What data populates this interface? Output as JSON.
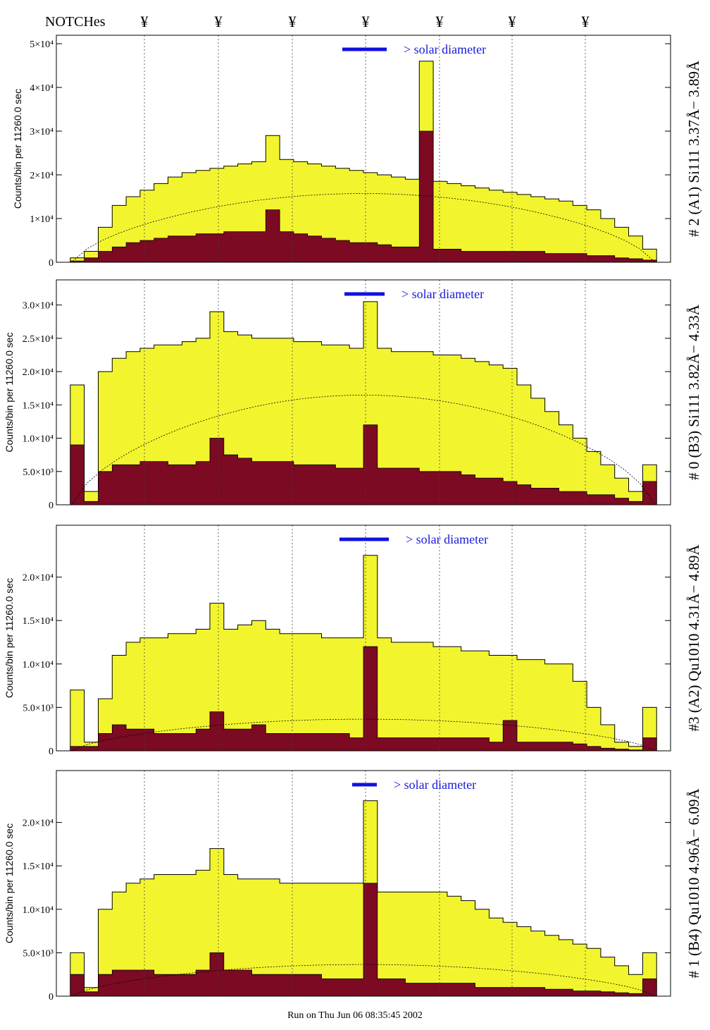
{
  "header": {
    "notches_label": "NOTCHes",
    "notch_symbol": "¥",
    "notch_count": 7
  },
  "footer": {
    "run_text": "Run on Thu Jun 06 08:35:45 2002"
  },
  "colors": {
    "fill_total": "#f2f52e",
    "fill_line": "#7b0a22",
    "bar": "#1010e0",
    "label_blue": "#1a1adc"
  },
  "chart_data": [
    {
      "type": "area",
      "title": "",
      "ylabel": "Counts/bin per  11260.0 sec",
      "right_label": "# 2 (A1) Si111  3.37Å− 3.89Å",
      "solar_label": "> solar diameter",
      "yticks": [
        "0",
        "1×10⁴",
        "2×10⁴",
        "3×10⁴",
        "4×10⁴",
        "5×10⁴"
      ],
      "ylim": [
        0,
        50000
      ],
      "series": [
        {
          "values": [
            0,
            1000,
            2500,
            8000,
            13000,
            15000,
            16500,
            18000,
            19500,
            20500,
            21000,
            21500,
            22000,
            22500,
            23000,
            29000,
            23500,
            23000,
            22500,
            22000,
            21500,
            21000,
            20500,
            20000,
            19500,
            19000,
            46000,
            18500,
            18000,
            17500,
            17000,
            16500,
            16000,
            15500,
            15000,
            14500,
            14000,
            13000,
            12000,
            10000,
            8000,
            6000,
            3000,
            0
          ]
        },
        {
          "values": [
            0,
            300,
            1000,
            2500,
            3500,
            4500,
            5000,
            5500,
            6000,
            6000,
            6500,
            6500,
            7000,
            7000,
            7000,
            12000,
            7000,
            6500,
            6000,
            5500,
            5000,
            4500,
            4500,
            4000,
            3500,
            3500,
            30000,
            3000,
            3000,
            2500,
            2500,
            2500,
            2500,
            2500,
            2500,
            2000,
            2000,
            2000,
            1500,
            1500,
            1000,
            800,
            500,
            0
          ]
        }
      ]
    },
    {
      "type": "area",
      "title": "",
      "ylabel": "Counts/bin per  11260.0 sec",
      "right_label": "# 0 (B3) Si111  3.82Å− 4.33Å",
      "solar_label": "> solar diameter",
      "yticks": [
        "0",
        "5.0×10³",
        "1.0×10⁴",
        "1.5×10⁴",
        "2.0×10⁴",
        "2.5×10⁴",
        "3.0×10⁴"
      ],
      "ylim": [
        0,
        32500
      ],
      "series": [
        {
          "values": [
            0,
            18000,
            2000,
            20000,
            22000,
            23000,
            23500,
            24000,
            24000,
            24500,
            25000,
            29000,
            26000,
            25500,
            25000,
            25000,
            25000,
            24500,
            24500,
            24000,
            24000,
            23500,
            30500,
            23500,
            23000,
            23000,
            23000,
            22500,
            22500,
            22000,
            21500,
            21000,
            20500,
            18000,
            16000,
            14000,
            12000,
            10000,
            8000,
            6000,
            4000,
            2000,
            6000,
            0
          ]
        },
        {
          "values": [
            0,
            9000,
            500,
            5000,
            6000,
            6000,
            6500,
            6500,
            6000,
            6000,
            6500,
            10000,
            7500,
            7000,
            6500,
            6500,
            6500,
            6000,
            6000,
            6000,
            5500,
            5500,
            12000,
            5500,
            5500,
            5500,
            5000,
            5000,
            5000,
            4500,
            4000,
            4000,
            3500,
            3000,
            2500,
            2500,
            2000,
            2000,
            1500,
            1500,
            1000,
            500,
            3500,
            0
          ]
        }
      ]
    },
    {
      "type": "area",
      "title": "",
      "ylabel": "Counts/bin per  11260.0 sec",
      "right_label": "#3 (A2) Qu1010  4.31Å− 4.89Å",
      "solar_label": "> solar diameter",
      "yticks": [
        "0",
        "5.0×10³",
        "1.0×10⁴",
        "1.5×10⁴",
        "2.0×10⁴"
      ],
      "ylim": [
        0,
        25000
      ],
      "series": [
        {
          "values": [
            0,
            7000,
            1000,
            6000,
            11000,
            12500,
            13000,
            13000,
            13500,
            13500,
            14000,
            17000,
            14000,
            14500,
            15000,
            14000,
            13500,
            13500,
            13500,
            13000,
            13000,
            13000,
            22500,
            13000,
            12500,
            12500,
            12500,
            12000,
            12000,
            11500,
            11500,
            11000,
            11000,
            10500,
            10500,
            10000,
            10000,
            8000,
            5000,
            3000,
            1000,
            500,
            5000,
            0
          ]
        },
        {
          "values": [
            0,
            500,
            500,
            2000,
            3000,
            2500,
            2500,
            2000,
            2000,
            2000,
            2500,
            4500,
            2500,
            2500,
            3000,
            2000,
            2000,
            2000,
            2000,
            2000,
            2000,
            1500,
            12000,
            1500,
            1500,
            1500,
            1500,
            1500,
            1500,
            1500,
            1500,
            1000,
            3500,
            1000,
            1000,
            1000,
            1000,
            800,
            500,
            300,
            200,
            100,
            1500,
            0
          ]
        }
      ]
    },
    {
      "type": "area",
      "title": "",
      "ylabel": "Counts/bin per  11260.0 sec",
      "right_label": "# 1 (B4) Qu1010 4.96Å− 6.09Å",
      "solar_label": "> solar diameter",
      "yticks": [
        "0",
        "5.0×10³",
        "1.0×10⁴",
        "1.5×10⁴",
        "2.0×10⁴"
      ],
      "ylim": [
        0,
        25000
      ],
      "series": [
        {
          "values": [
            0,
            5000,
            1000,
            10000,
            12000,
            13000,
            13500,
            14000,
            14000,
            14000,
            14500,
            17000,
            14000,
            13500,
            13500,
            13500,
            13000,
            13000,
            13000,
            13000,
            13000,
            13000,
            22500,
            12000,
            12000,
            12000,
            12000,
            12000,
            11500,
            11000,
            10000,
            9000,
            8500,
            8000,
            7500,
            7000,
            6500,
            6000,
            5500,
            4500,
            3500,
            2500,
            5000,
            0
          ]
        },
        {
          "values": [
            0,
            2500,
            500,
            2500,
            3000,
            3000,
            3000,
            2500,
            2500,
            2500,
            3000,
            5000,
            3000,
            3000,
            2500,
            2500,
            2500,
            2500,
            2500,
            2000,
            2000,
            2000,
            13000,
            2000,
            2000,
            1500,
            1500,
            1500,
            1500,
            1500,
            1000,
            1000,
            1000,
            1000,
            1000,
            800,
            800,
            600,
            600,
            500,
            400,
            300,
            2000,
            0
          ]
        }
      ]
    }
  ]
}
